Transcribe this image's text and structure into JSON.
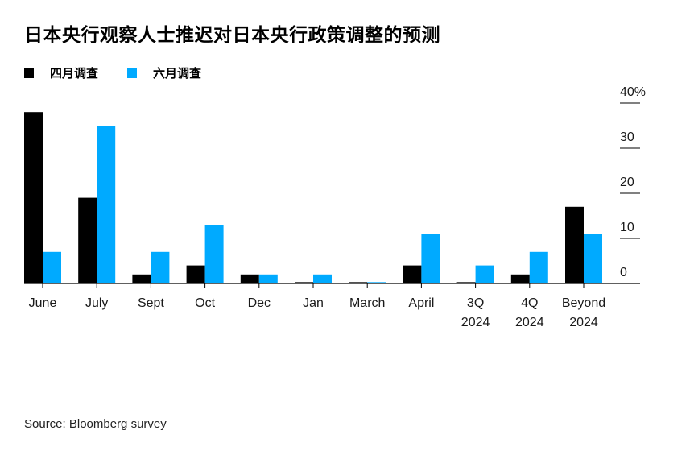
{
  "title": "日本央行观察人士推迟对日本央行政策调整的预测",
  "source": "Source: Bloomberg survey",
  "chart_data": {
    "type": "bar",
    "categories": [
      "June",
      "July",
      "Sept",
      "Oct",
      "Dec",
      "Jan",
      "March",
      "April",
      "3Q\n2024",
      "4Q\n2024",
      "Beyond\n2024"
    ],
    "series": [
      {
        "name": "四月调查",
        "color": "#000000",
        "values": [
          38,
          19,
          2,
          4,
          2,
          0.3,
          0.3,
          4,
          0.3,
          2,
          17
        ]
      },
      {
        "name": "六月调查",
        "color": "#00aaff",
        "values": [
          7,
          35,
          7,
          13,
          2,
          2,
          0.3,
          11,
          4,
          7,
          11
        ]
      }
    ],
    "yticks": [
      0,
      10,
      20,
      30,
      40
    ],
    "ytick_labels": [
      "0",
      "10",
      "20",
      "30",
      "40%"
    ],
    "ylim": [
      0,
      40
    ],
    "y_axis_side": "right",
    "legend_position": "top-left",
    "grid": false
  }
}
